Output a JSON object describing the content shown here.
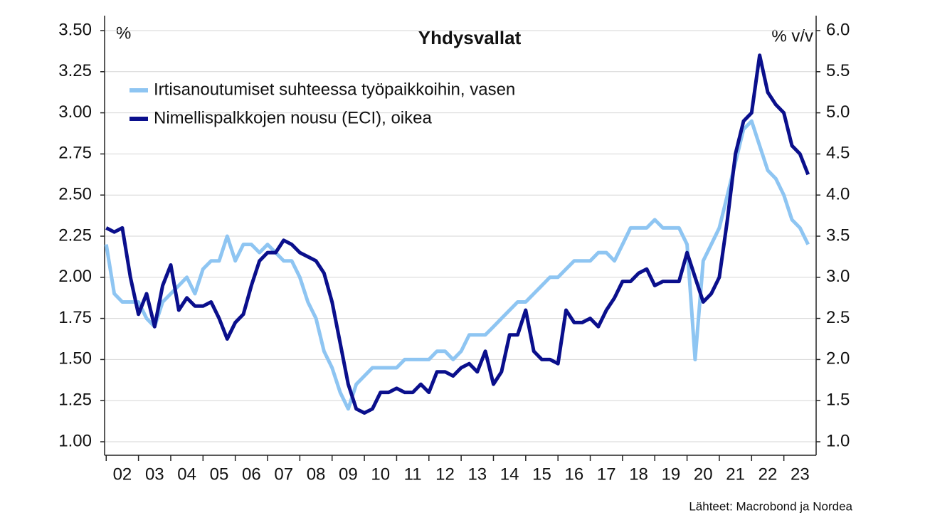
{
  "chart_data": {
    "type": "line",
    "title": "Yhdysvallat",
    "y_label": "%",
    "y2_label": "% v/v",
    "source": "Lähteet: Macrobond ja Nordea",
    "legend": "upper left",
    "grid": true,
    "x": [
      2002,
      2002.25,
      2002.5,
      2002.75,
      2003,
      2003.25,
      2003.5,
      2003.75,
      2004,
      2004.25,
      2004.5,
      2004.75,
      2005,
      2005.25,
      2005.5,
      2005.75,
      2006,
      2006.25,
      2006.5,
      2006.75,
      2007,
      2007.25,
      2007.5,
      2007.75,
      2008,
      2008.25,
      2008.5,
      2008.75,
      2009,
      2009.25,
      2009.5,
      2009.75,
      2010,
      2010.25,
      2010.5,
      2010.75,
      2011,
      2011.25,
      2011.5,
      2011.75,
      2012,
      2012.25,
      2012.5,
      2012.75,
      2013,
      2013.25,
      2013.5,
      2013.75,
      2014,
      2014.25,
      2014.5,
      2014.75,
      2015,
      2015.25,
      2015.5,
      2015.75,
      2016,
      2016.25,
      2016.5,
      2016.75,
      2017,
      2017.25,
      2017.5,
      2017.75,
      2018,
      2018.25,
      2018.5,
      2018.75,
      2019,
      2019.25,
      2019.5,
      2019.75,
      2020,
      2020.25,
      2020.5,
      2020.75,
      2021,
      2021.25,
      2021.5,
      2021.75,
      2022,
      2022.25,
      2022.5,
      2022.75,
      2023,
      2023.25,
      2023.5,
      2023.75
    ],
    "xlim": [
      2001.95,
      2024
    ],
    "xticks": [
      {
        "value": 2002,
        "label": "02"
      },
      {
        "value": 2003,
        "label": "03"
      },
      {
        "value": 2004,
        "label": "04"
      },
      {
        "value": 2005,
        "label": "05"
      },
      {
        "value": 2006,
        "label": "06"
      },
      {
        "value": 2007,
        "label": "07"
      },
      {
        "value": 2008,
        "label": "08"
      },
      {
        "value": 2009,
        "label": "09"
      },
      {
        "value": 2010,
        "label": "10"
      },
      {
        "value": 2011,
        "label": "11"
      },
      {
        "value": 2012,
        "label": "12"
      },
      {
        "value": 2013,
        "label": "13"
      },
      {
        "value": 2014,
        "label": "14"
      },
      {
        "value": 2015,
        "label": "15"
      },
      {
        "value": 2016,
        "label": "16"
      },
      {
        "value": 2017,
        "label": "17"
      },
      {
        "value": 2018,
        "label": "18"
      },
      {
        "value": 2019,
        "label": "19"
      },
      {
        "value": 2020,
        "label": "20"
      },
      {
        "value": 2021,
        "label": "21"
      },
      {
        "value": 2022,
        "label": "22"
      },
      {
        "value": 2023,
        "label": "23"
      }
    ],
    "ylim": [
      1.0,
      3.5
    ],
    "yticks": [
      {
        "value": 1.0,
        "label": "1.00"
      },
      {
        "value": 1.25,
        "label": "1.25"
      },
      {
        "value": 1.5,
        "label": "1.50"
      },
      {
        "value": 1.75,
        "label": "1.75"
      },
      {
        "value": 2.0,
        "label": "2.00"
      },
      {
        "value": 2.25,
        "label": "2.25"
      },
      {
        "value": 2.5,
        "label": "2.50"
      },
      {
        "value": 2.75,
        "label": "2.75"
      },
      {
        "value": 3.0,
        "label": "3.00"
      },
      {
        "value": 3.25,
        "label": "3.25"
      },
      {
        "value": 3.5,
        "label": "3.50"
      }
    ],
    "y2lim": [
      1.0,
      6.0
    ],
    "y2ticks": [
      {
        "value": 1,
        "label": "1.0"
      },
      {
        "value": 1.5,
        "label": "1.5"
      },
      {
        "value": 2,
        "label": "2.0"
      },
      {
        "value": 2.5,
        "label": "2.5"
      },
      {
        "value": 3,
        "label": "3.0"
      },
      {
        "value": 3.5,
        "label": "3.5"
      },
      {
        "value": 4,
        "label": "4.0"
      },
      {
        "value": 4.5,
        "label": "4.5"
      },
      {
        "value": 5,
        "label": "5.0"
      },
      {
        "value": 5.5,
        "label": "5.5"
      },
      {
        "value": 6,
        "label": "6.0"
      }
    ],
    "series": [
      {
        "name": "Irtisanoutumiset suhteessa työpaikkoihin, vasen",
        "color": "#8ec5f2",
        "axis": "y",
        "values": [
          2.2,
          1.9,
          1.85,
          1.85,
          1.85,
          1.75,
          1.7,
          1.85,
          1.9,
          1.95,
          2.0,
          1.9,
          2.05,
          2.1,
          2.1,
          2.25,
          2.1,
          2.2,
          2.2,
          2.15,
          2.2,
          2.15,
          2.1,
          2.1,
          2.0,
          1.85,
          1.75,
          1.55,
          1.45,
          1.3,
          1.2,
          1.35,
          1.4,
          1.45,
          1.45,
          1.45,
          1.45,
          1.5,
          1.5,
          1.5,
          1.5,
          1.55,
          1.55,
          1.5,
          1.55,
          1.65,
          1.65,
          1.65,
          1.7,
          1.75,
          1.8,
          1.85,
          1.85,
          1.9,
          1.95,
          2.0,
          2.0,
          2.05,
          2.1,
          2.1,
          2.1,
          2.15,
          2.15,
          2.1,
          2.2,
          2.3,
          2.3,
          2.3,
          2.35,
          2.3,
          2.3,
          2.3,
          2.2,
          1.5,
          2.1,
          2.2,
          2.3,
          2.5,
          2.7,
          2.9,
          2.95,
          2.8,
          2.65,
          2.6,
          2.5,
          2.35,
          2.3,
          2.2
        ]
      },
      {
        "name": "Nimellispalkkojen nousu (ECI), oikea",
        "color": "#0a0f8c",
        "axis": "y2",
        "values": [
          3.6,
          3.55,
          3.6,
          3.0,
          2.55,
          2.8,
          2.4,
          2.9,
          3.15,
          2.6,
          2.75,
          2.65,
          2.65,
          2.7,
          2.5,
          2.25,
          2.45,
          2.55,
          2.9,
          3.2,
          3.3,
          3.3,
          3.45,
          3.4,
          3.3,
          3.25,
          3.2,
          3.05,
          2.7,
          2.2,
          1.7,
          1.4,
          1.35,
          1.4,
          1.6,
          1.6,
          1.65,
          1.6,
          1.6,
          1.7,
          1.6,
          1.85,
          1.85,
          1.8,
          1.9,
          1.95,
          1.85,
          2.1,
          1.7,
          1.85,
          2.3,
          2.3,
          2.6,
          2.1,
          2.0,
          2.0,
          1.95,
          2.6,
          2.45,
          2.45,
          2.5,
          2.4,
          2.6,
          2.75,
          2.95,
          2.95,
          3.05,
          3.1,
          2.9,
          2.95,
          2.95,
          2.95,
          3.3,
          3.0,
          2.7,
          2.8,
          3.0,
          3.7,
          4.5,
          4.9,
          5.0,
          5.7,
          5.25,
          5.1,
          5.0,
          4.6,
          4.5,
          4.25
        ]
      }
    ]
  }
}
